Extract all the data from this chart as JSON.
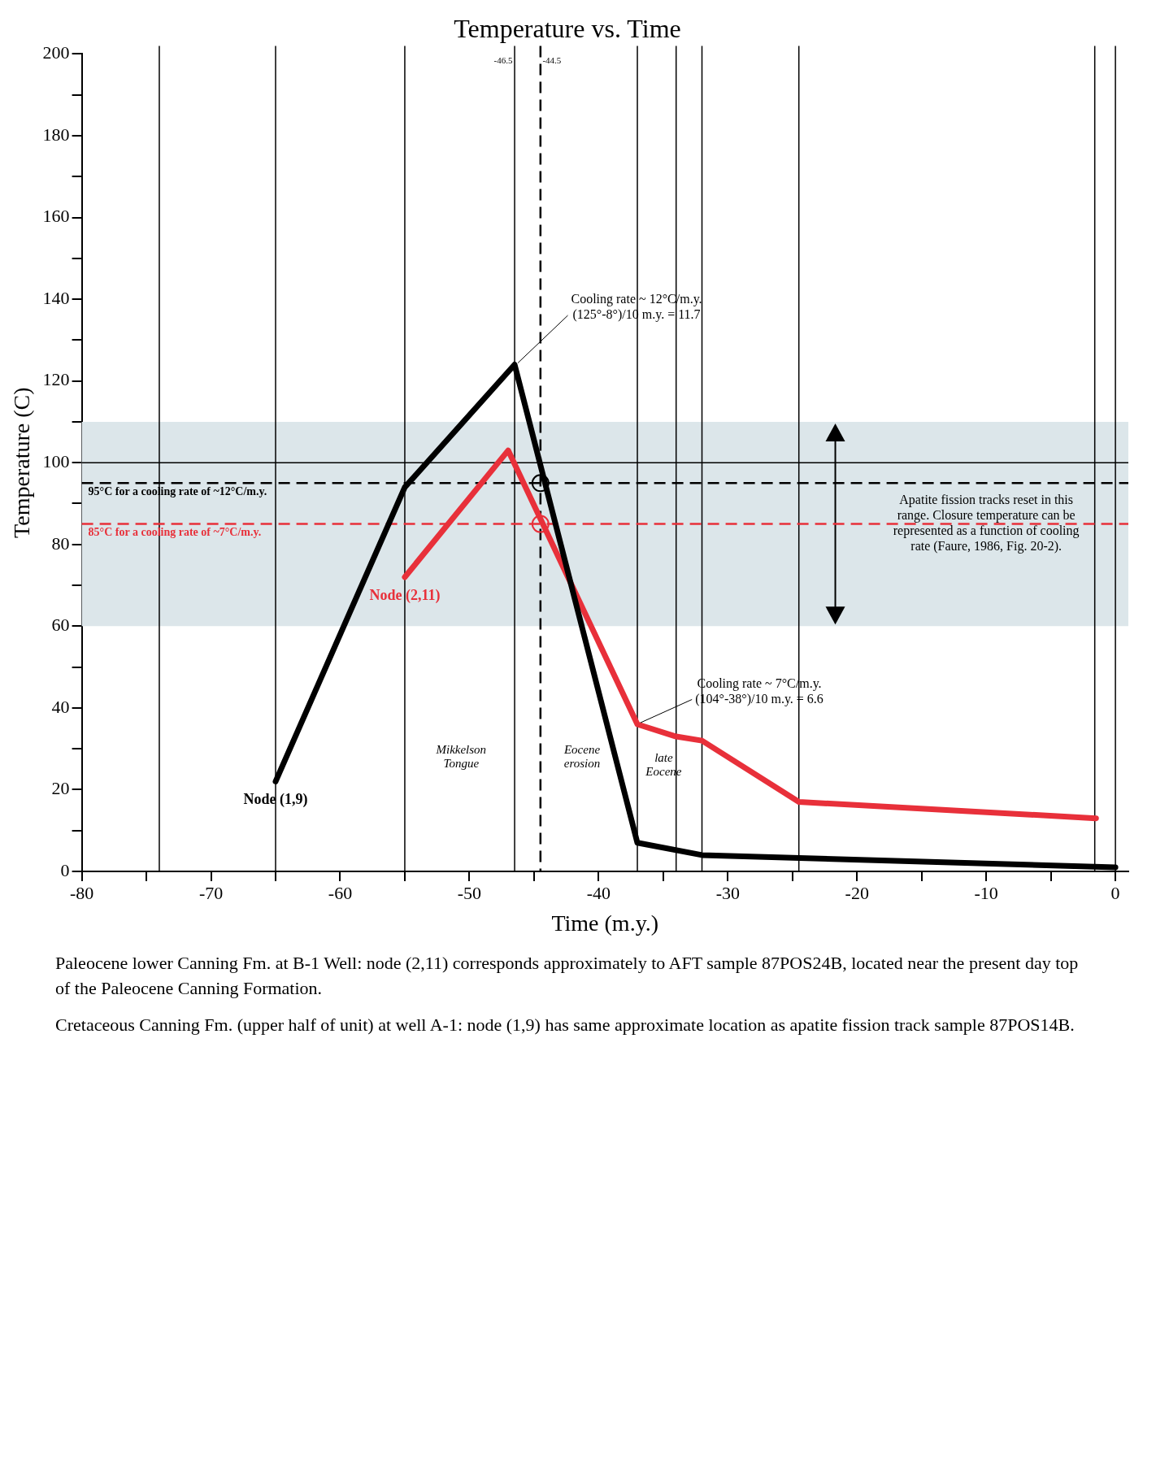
{
  "chart_data": {
    "type": "line",
    "title": "Temperature vs. Time",
    "xlabel": "Time (m.y.)",
    "ylabel": "Temperature (C)",
    "xlim": [
      -80,
      1
    ],
    "xticks": [
      -80,
      {
        "value": -75,
        "label": null
      },
      -70,
      {
        "value": -65,
        "label": null
      },
      -60,
      {
        "value": -55,
        "label": null
      },
      -50,
      {
        "value": -45,
        "label": null
      },
      -40,
      {
        "value": -35,
        "label": null
      },
      -30,
      {
        "value": -25,
        "label": null
      },
      -20,
      {
        "value": -15,
        "label": null
      },
      -10,
      {
        "value": -5,
        "label": null
      },
      0
    ],
    "ylim": [
      0,
      200
    ],
    "yticks": [
      0,
      {
        "value": 10,
        "label": null
      },
      20,
      {
        "value": 30,
        "label": null
      },
      40,
      {
        "value": 50,
        "label": null
      },
      60,
      {
        "value": 70,
        "label": null
      },
      80,
      {
        "value": 90,
        "label": null
      },
      100,
      {
        "value": 110,
        "label": null
      },
      120,
      {
        "value": 130,
        "label": null
      },
      140,
      {
        "value": 150,
        "label": null
      },
      160,
      {
        "value": 170,
        "label": null
      },
      180,
      {
        "value": 190,
        "label": null
      },
      200
    ],
    "grid": false,
    "legend": false,
    "series": [
      {
        "type": "line",
        "name": "Node (1,9)",
        "color": "#000000",
        "marker": "none",
        "x": [
          -65,
          -55,
          -46.5,
          -37,
          -32,
          0
        ],
        "values": [
          22,
          94,
          124,
          7,
          4,
          1
        ]
      },
      {
        "type": "line",
        "name": "Node (2,11)",
        "color": "#e8303a",
        "marker": "none",
        "x": [
          -55,
          -47,
          -37,
          -34,
          -32,
          -24.5,
          -1.5
        ],
        "values": [
          72,
          103,
          36,
          33,
          32,
          17,
          13
        ]
      },
      {
        "type": "scatter",
        "color": "#000000",
        "marker": "circle",
        "x": [
          -44.5
        ],
        "values": [
          95
        ]
      },
      {
        "type": "scatter",
        "color": "#e8303a",
        "marker": "circle",
        "x": [
          -44.5
        ],
        "values": [
          85
        ]
      }
    ],
    "bands": [
      {
        "axis": "y",
        "from": 60,
        "to": 110,
        "color": "#dce6ea"
      }
    ],
    "ref_lines": [
      {
        "axis": "x",
        "value": 0,
        "color": "#000000"
      },
      {
        "axis": "x",
        "value": -1.6,
        "color": "#000000"
      },
      {
        "axis": "x",
        "value": -24.5,
        "color": "#000000"
      },
      {
        "axis": "x",
        "value": -32,
        "color": "#000000"
      },
      {
        "axis": "x",
        "value": -34,
        "color": "#000000"
      },
      {
        "axis": "x",
        "value": -37,
        "color": "#000000"
      },
      {
        "axis": "x",
        "value": -44.5,
        "label": "-44.5",
        "color": "#000000",
        "line_style": "dashed"
      },
      {
        "axis": "x",
        "value": -46.5,
        "label": "-46.5",
        "color": "#000000"
      },
      {
        "axis": "x",
        "value": -55,
        "color": "#000000"
      },
      {
        "axis": "x",
        "value": -65,
        "color": "#000000"
      },
      {
        "axis": "x",
        "value": -74,
        "color": "#000000"
      },
      {
        "axis": "y",
        "value": 100,
        "color": "#000000"
      },
      {
        "axis": "y",
        "value": 95,
        "label": "95°C for a cooling rate of ~12°C/m.y.",
        "color": "#000000",
        "line_style": "dashed"
      },
      {
        "axis": "y",
        "value": 85,
        "label": "85°C for a cooling rate of ~7°C/m.y.",
        "color": "#e8303a",
        "line_style": "dashed"
      }
    ],
    "annotations": [
      "Paleocene lower Canning Fm. at B-1 Well: node (2,11) corresponds approximately to AFT sample 87POS24B, located near the present day top of the Paleocene Canning Formation.",
      "Cretaceous Canning Fm. (upper half of unit) at well A-1: node (1,9) has same approximate location as apatite fission track sample 87POS14B.",
      {
        "text": "Cooling rate ~ 12°C/m.y. (125°-8°)/10 m.y. = 11.7",
        "x": -46.5,
        "y": 124
      },
      {
        "text": "Cooling rate ~ 7°C/m.y. (104°-38°)/10 m.y. = 6.6",
        "x": -37,
        "y": 36
      },
      {
        "text": "Apatite fission tracks reset in this range. Closure temperature can be represented as a function of cooling rate (Faure, 1986, Fig. 20-2).",
        "x": -10,
        "y": 85
      },
      "late Eocene",
      "Eocene erosion",
      "Mikkelson Tongue"
    ]
  }
}
